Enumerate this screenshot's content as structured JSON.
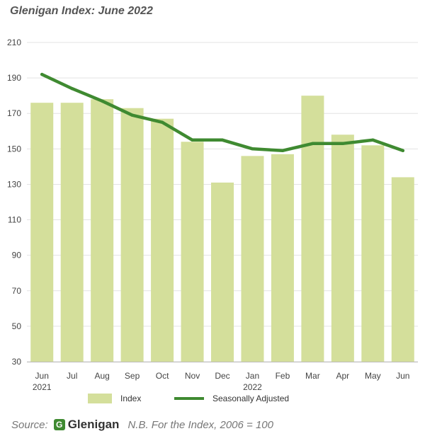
{
  "title": "Glenigan Index: June 2022",
  "legend": {
    "index_label": "Index",
    "seasonal_label": "Seasonally Adjusted"
  },
  "footer": {
    "source_label": "Source:",
    "logo_text": "Glenigan",
    "logo_mark": "G",
    "note": "N.B. For the Index, 2006 = 100"
  },
  "colors": {
    "bar": "#d4df9b",
    "line": "#3f8a31",
    "grid": "#e3e3e3",
    "axis": "#bbbbbb"
  },
  "chart_data": {
    "type": "bar",
    "title": "Glenigan Index: June 2022",
    "categories": [
      "Jun",
      "Jul",
      "Aug",
      "Sep",
      "Oct",
      "Nov",
      "Dec",
      "Jan",
      "Feb",
      "Mar",
      "Apr",
      "May",
      "Jun"
    ],
    "category_sublabels": [
      "2021",
      "",
      "",
      "",
      "",
      "",
      "",
      "2022",
      "",
      "",
      "",
      "",
      ""
    ],
    "series": [
      {
        "name": "Index",
        "type": "bar",
        "values": [
          176,
          176,
          178,
          173,
          167,
          154,
          131,
          146,
          147,
          180,
          158,
          152,
          134
        ]
      },
      {
        "name": "Seasonally Adjusted",
        "type": "line",
        "values": [
          192,
          184,
          177,
          169,
          165,
          155,
          155,
          150,
          149,
          153,
          153,
          155,
          149
        ]
      }
    ],
    "ylim": [
      30,
      210
    ],
    "yticks": [
      30,
      50,
      70,
      90,
      110,
      130,
      150,
      170,
      190,
      210
    ],
    "xlabel": "",
    "ylabel": "",
    "grid": true,
    "legend_position": "bottom"
  }
}
